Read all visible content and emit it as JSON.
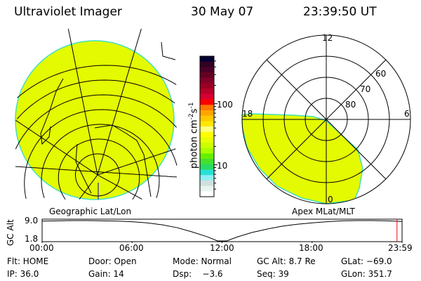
{
  "header": {
    "instrument": "Ultraviolet Imager",
    "date": "30 May 07",
    "time": "23:39:50 UT"
  },
  "colors": {
    "emission": "#e4fa00",
    "emission_edge": "#40e0c0",
    "grid": "#000000",
    "cursor": "#ff0000",
    "pole_marker": "#0000cc"
  },
  "geographic_panel": {
    "label": "Geographic Lat/Lon"
  },
  "apex_panel": {
    "label": "Apex MLat/MLT",
    "mlt_labels": [
      "12",
      "18",
      "6",
      "0"
    ],
    "mlat_labels": [
      "60",
      "70",
      "80"
    ]
  },
  "colorbar": {
    "unit_label": "photon cm",
    "unit_sup1": "-2",
    "unit_mid": "s",
    "unit_sup2": "-1",
    "scale": "log",
    "tick_labels": [
      "100",
      "10"
    ],
    "range": [
      3,
      600
    ],
    "colors": [
      "#000033",
      "#330022",
      "#4a0028",
      "#660022",
      "#800028",
      "#990022",
      "#b80028",
      "#d80030",
      "#ff0000",
      "#ff7800",
      "#ffa500",
      "#ffc800",
      "#ffe600",
      "#ffff80",
      "#ffff00",
      "#e8ff00",
      "#ccff00",
      "#a8ff00",
      "#66f000",
      "#44e030",
      "#28dc64",
      "#28e0d4",
      "#90eef4",
      "#d0e0e0",
      "#e8f4ee",
      "#ffffff"
    ]
  },
  "timeline": {
    "ylabel": "GC Alt",
    "y_ticks": [
      "9.0",
      "1.8"
    ],
    "x_ticks": [
      "00:00",
      "06:00",
      "12:00",
      "18:00",
      "23:59"
    ]
  },
  "chart_data": {
    "type": "line",
    "ylabel": "GC Alt",
    "ylim": [
      1.8,
      9.0
    ],
    "x_hours": [
      0,
      1,
      2,
      3,
      4,
      5,
      6,
      7,
      8,
      9,
      10,
      11,
      11.7,
      12.3,
      13,
      14,
      15,
      16,
      17,
      18,
      19,
      20,
      21,
      22,
      23,
      23.98
    ],
    "values": [
      8.8,
      8.9,
      9.0,
      9.0,
      8.9,
      8.8,
      8.6,
      8.2,
      7.5,
      6.5,
      5.0,
      3.3,
      1.8,
      1.8,
      3.2,
      4.8,
      6.0,
      7.0,
      7.7,
      8.2,
      8.6,
      8.9,
      9.0,
      9.0,
      8.9,
      8.7
    ],
    "cursor_time": "23:39:50"
  },
  "info": {
    "row1": [
      "Flt: HOME",
      "Door: Open",
      "Mode: Normal",
      "GC Alt: 8.7 Re",
      "GLat: −69.0"
    ],
    "row2": [
      "IP: 36.0",
      "Gain: 14",
      "Dsp:    −3.6",
      "Seq: 39",
      "GLon: 351.7"
    ]
  }
}
